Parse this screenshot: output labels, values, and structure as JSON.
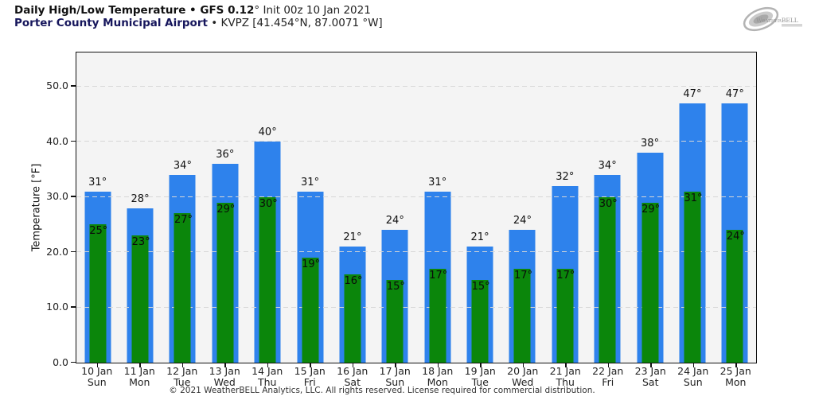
{
  "header": {
    "title_bold": "Daily High/Low Temperature • GFS 0.12",
    "title_rest": "° Init 00z 10 Jan 2021",
    "subtitle_bold": "Porter County Municipal Airport",
    "subtitle_rest": " • KVPZ [41.454°N, 87.0071 °W]"
  },
  "logo": {
    "text": "WeatherBELL",
    "subtext": "Analytics"
  },
  "chart_data": {
    "type": "bar",
    "title": "Daily High/Low Temperature - GFS 0.12 - Init 00z 10 Jan 2021",
    "subtitle": "Porter County Municipal Airport - KVPZ [41.454N, 87.0071W]",
    "xlabel": "",
    "ylabel": "Temperature [°F]",
    "ylim": [
      0,
      56
    ],
    "yticks": [
      0,
      10,
      20,
      30,
      40,
      50
    ],
    "ytick_labels": [
      "0.0",
      "10.0",
      "20.0",
      "30.0",
      "40.0",
      "50.0"
    ],
    "grid": "horizontal dashed",
    "legend": "none",
    "plot_bg": "#f4f4f4",
    "categories": [
      "10 Jan",
      "11 Jan",
      "12 Jan",
      "13 Jan",
      "14 Jan",
      "15 Jan",
      "16 Jan",
      "17 Jan",
      "18 Jan",
      "19 Jan",
      "20 Jan",
      "21 Jan",
      "22 Jan",
      "23 Jan",
      "24 Jan",
      "25 Jan"
    ],
    "weekdays": [
      "Sun",
      "Mon",
      "Tue",
      "Wed",
      "Thu",
      "Fri",
      "Sat",
      "Sun",
      "Mon",
      "Tue",
      "Wed",
      "Thu",
      "Fri",
      "Sat",
      "Sun",
      "Mon"
    ],
    "series": [
      {
        "name": "Daily High",
        "color": "#2e82ec",
        "values": [
          31,
          28,
          34,
          36,
          40,
          31,
          21,
          24,
          31,
          21,
          24,
          32,
          34,
          38,
          47,
          47
        ]
      },
      {
        "name": "Daily Low",
        "color": "#0b860b",
        "values": [
          25,
          23,
          27,
          29,
          30,
          19,
          16,
          15,
          17,
          15,
          17,
          17,
          30,
          29,
          31,
          24
        ]
      }
    ],
    "bar_label_suffix": "°"
  },
  "footer": {
    "copyright": "© 2021 WeatherBELL Analytics, LLC. All rights reserved. License required for commercial distribution."
  }
}
